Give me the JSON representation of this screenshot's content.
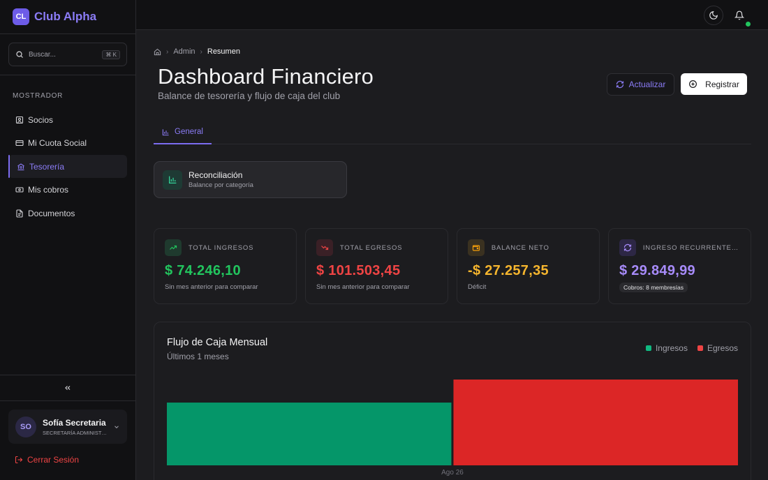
{
  "brand": {
    "initials": "CL",
    "name": "Club Alpha"
  },
  "search": {
    "placeholder": "Buscar...",
    "shortcut": "⌘ K"
  },
  "sidebar": {
    "section_title": "MOSTRADOR",
    "items": [
      {
        "label": "Socios",
        "icon": "user-square-icon"
      },
      {
        "label": "Mi Cuota Social",
        "icon": "credit-card-icon"
      },
      {
        "label": "Tesorería",
        "icon": "bank-icon",
        "active": true
      },
      {
        "label": "Mis cobros",
        "icon": "banknote-icon"
      },
      {
        "label": "Documentos",
        "icon": "file-icon"
      }
    ]
  },
  "user": {
    "initials": "SO",
    "name": "Sofía Secretaria",
    "role": "SECRETARÍA ADMINISTRATIVA"
  },
  "logout_label": "Cerrar Sesión",
  "breadcrumb": {
    "parent": "Admin",
    "current": "Resumen"
  },
  "page": {
    "title": "Dashboard Financiero",
    "subtitle": "Balance de tesorería y flujo de caja del club"
  },
  "actions": {
    "refresh_label": "Actualizar",
    "register_label": "Registrar"
  },
  "tabs": [
    {
      "label": "General",
      "active": true
    }
  ],
  "reconciliation": {
    "title": "Reconciliación",
    "subtitle": "Balance por categoría"
  },
  "stats": [
    {
      "label": "TOTAL INGRESOS",
      "value": "$ 74.246,10",
      "note": "Sin mes anterior para comparar",
      "color": "#22c55e",
      "icon": "trending-up-icon"
    },
    {
      "label": "TOTAL EGRESOS",
      "value": "$ 101.503,45",
      "note": "Sin mes anterior para comparar",
      "color": "#ef4444",
      "icon": "trending-down-icon"
    },
    {
      "label": "BALANCE NETO",
      "value": "-$ 27.257,35",
      "note": "Déficit",
      "color": "#f59e0b",
      "icon": "wallet-icon"
    },
    {
      "label": "INGRESO RECURRENTE (MRR)",
      "value": "$ 29.849,99",
      "badge": "Cobros: 8 membresías",
      "color": "#a78bfa",
      "icon": "refresh-icon"
    }
  ],
  "chart": {
    "title": "Flujo de Caja Mensual",
    "subtitle": "Últimos 1 meses",
    "legend": [
      {
        "name": "Ingresos",
        "color": "#10b981"
      },
      {
        "name": "Egresos",
        "color": "#ef4444"
      }
    ]
  },
  "chart_data": {
    "type": "bar",
    "categories": [
      "Ago 26"
    ],
    "series": [
      {
        "name": "Ingresos",
        "values": [
          74246.1
        ],
        "color": "#059669"
      },
      {
        "name": "Egresos",
        "values": [
          101503.45
        ],
        "color": "#dc2626"
      }
    ],
    "grid": false,
    "legend": "top-right"
  }
}
